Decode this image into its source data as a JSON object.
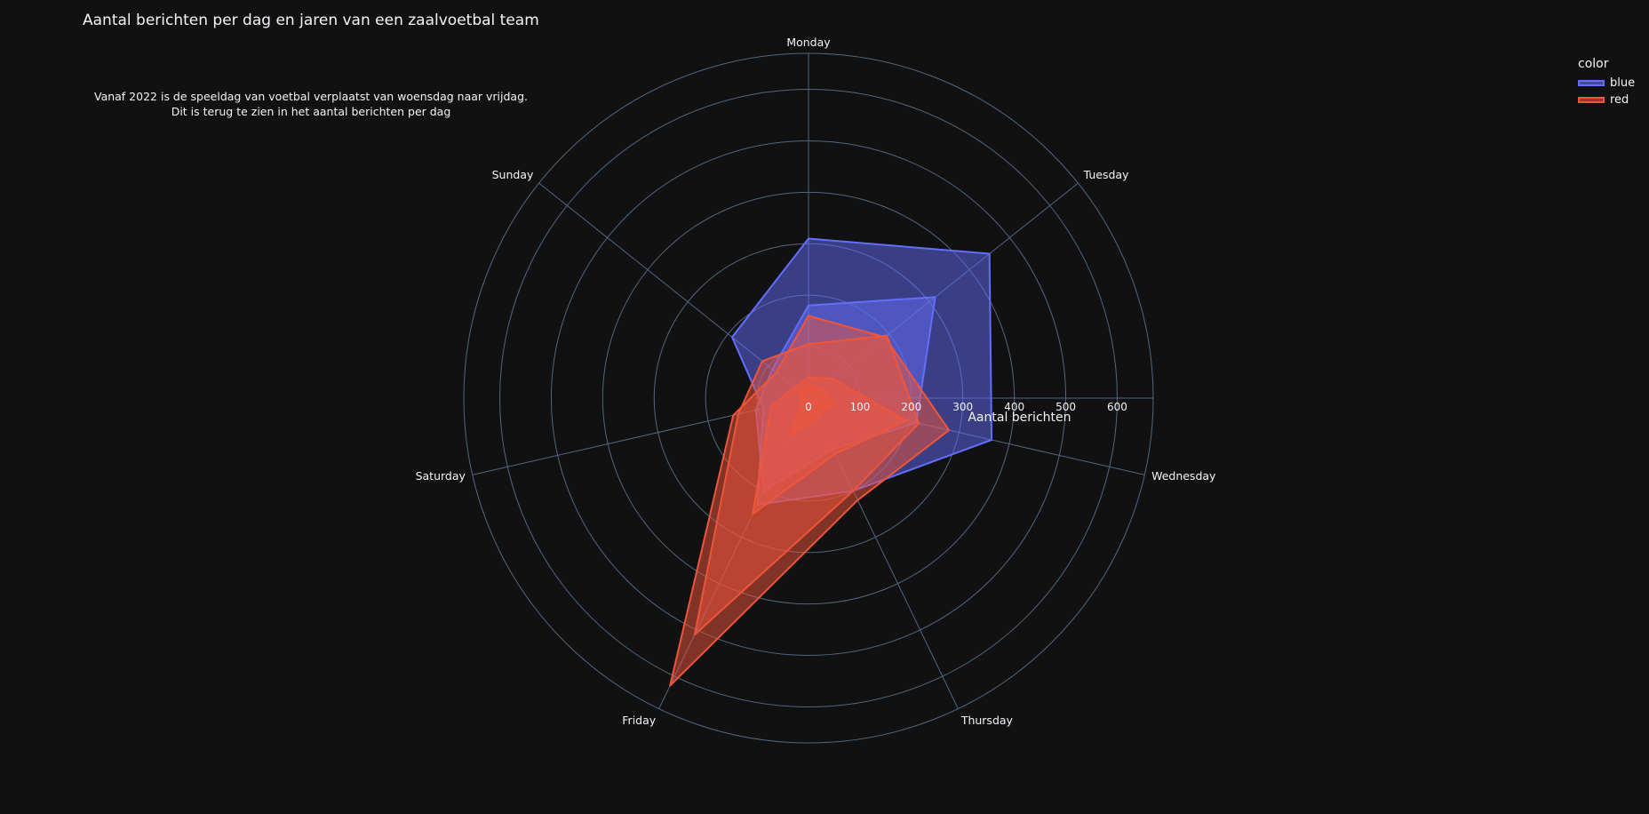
{
  "title": "Aantal berichten per dag en jaren van een zaalvoetbal team",
  "annotation": {
    "line1": "Vanaf 2022 is de speeldag van voetbal verplaatst van woensdag naar vrijdag.",
    "line2": "Dit is terug te zien in het aantal berichten per dag"
  },
  "legend": {
    "title": "color",
    "items": [
      {
        "label": "blue",
        "color": "#636efa"
      },
      {
        "label": "red",
        "color": "#ef553b"
      }
    ]
  },
  "chart_data": {
    "type": "radar",
    "title": "Aantal berichten per dag en jaren van een zaalvoetbal team",
    "theta": [
      "Monday",
      "Tuesday",
      "Wednesday",
      "Thursday",
      "Friday",
      "Saturday",
      "Sunday"
    ],
    "radial_axis_label": "Aantal berichten",
    "radial_ticks": [
      0,
      100,
      200,
      300,
      400,
      500,
      600
    ],
    "radial_range": [
      0,
      670
    ],
    "grid": true,
    "legend_position": "top-right",
    "series": [
      {
        "name": "blue",
        "color": "#636efa",
        "values": [
          310,
          450,
          365,
          200,
          230,
          90,
          190
        ]
      },
      {
        "name": "blue",
        "color": "#636efa",
        "values": [
          180,
          315,
          215,
          110,
          200,
          105,
          90
        ]
      },
      {
        "name": "red",
        "color": "#ef553b",
        "values": [
          160,
          190,
          280,
          220,
          620,
          150,
          80
        ]
      },
      {
        "name": "red",
        "color": "#ef553b",
        "values": [
          105,
          195,
          220,
          200,
          510,
          140,
          115
        ]
      },
      {
        "name": "red",
        "color": "#ef553b",
        "values": [
          40,
          60,
          195,
          120,
          250,
          75,
          35
        ]
      },
      {
        "name": "red",
        "color": "#ef553b",
        "values": [
          25,
          30,
          50,
          40,
          80,
          10,
          25
        ]
      }
    ]
  }
}
